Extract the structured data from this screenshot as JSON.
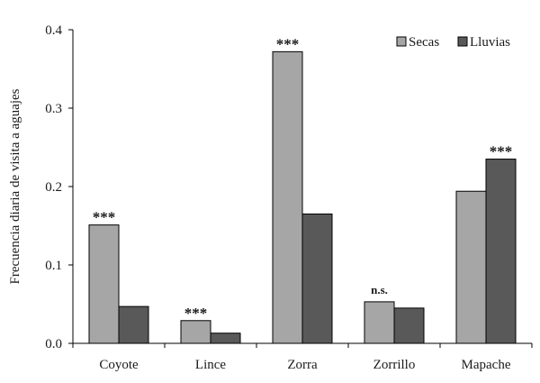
{
  "chart_data": {
    "type": "bar",
    "title": "",
    "xlabel": "",
    "ylabel": "Frecuencia diaria de visita a aguajes",
    "ylim": [
      0,
      0.4
    ],
    "yticks": [
      "0.0",
      "0.1",
      "0.2",
      "0.3",
      "0.4"
    ],
    "grid": false,
    "legend_position": "top-right",
    "categories": [
      "Coyote",
      "Lince",
      "Zorra",
      "Zorrillo",
      "Mapache"
    ],
    "series": [
      {
        "name": "Secas",
        "color": "#a6a6a6",
        "values": [
          0.151,
          0.029,
          0.372,
          0.053,
          0.194
        ]
      },
      {
        "name": "Lluvias",
        "color": "#595959",
        "values": [
          0.047,
          0.013,
          0.165,
          0.045,
          0.235
        ]
      }
    ],
    "annotations": [
      "***",
      "***",
      "***",
      "n.s.",
      "***"
    ]
  }
}
